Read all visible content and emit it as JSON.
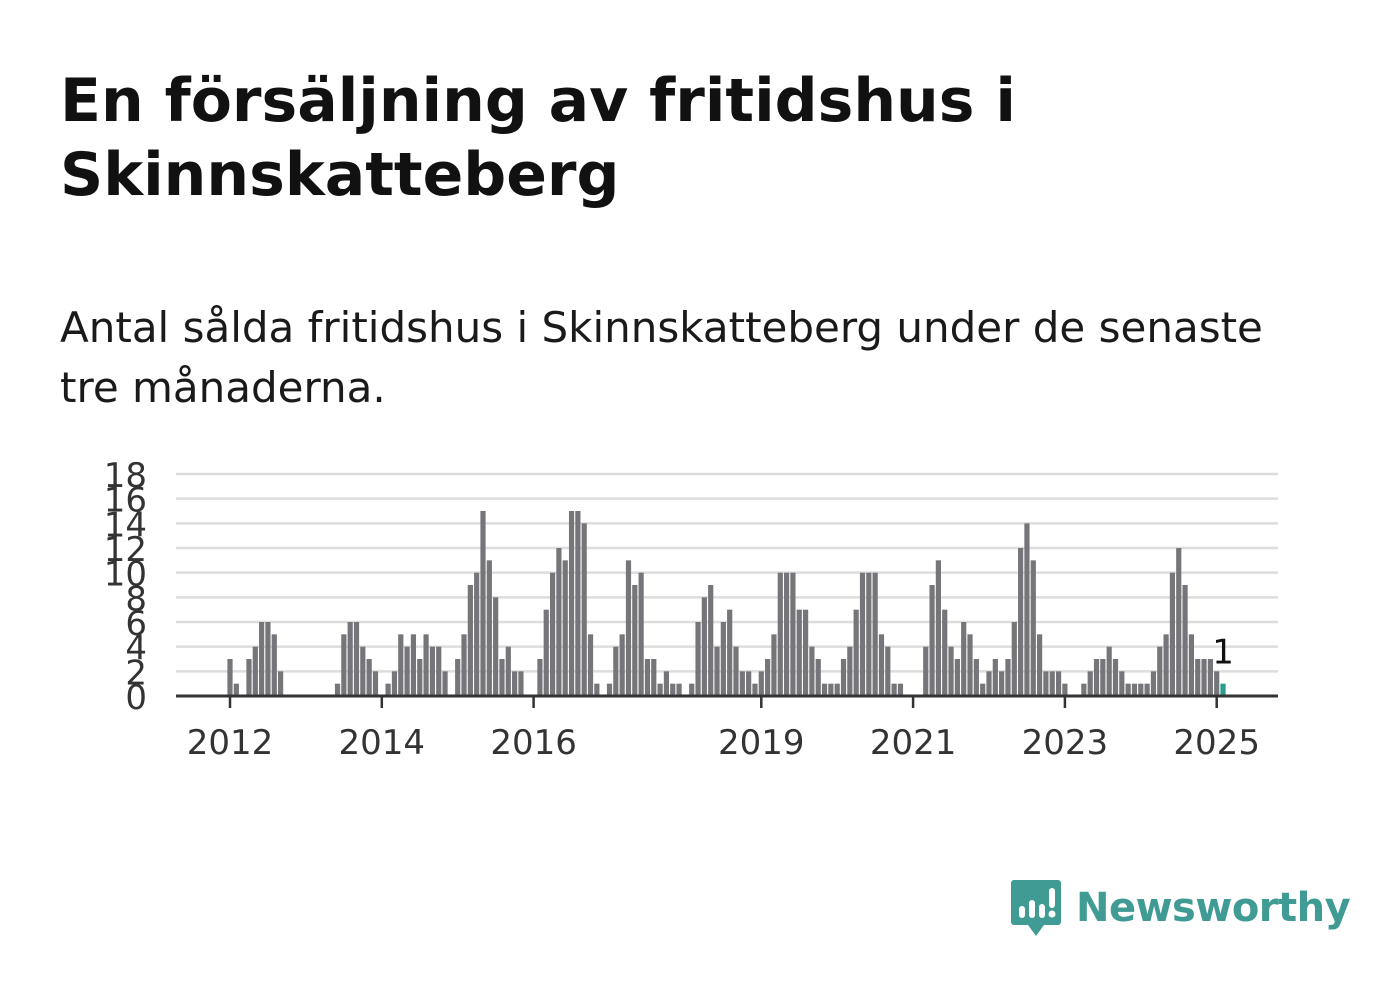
{
  "title": "En försäljning av fritidshus i Skinnskatteberg",
  "subtitle": "Antal sålda fritidshus i Skinnskatteberg under de senaste tre månaderna.",
  "brand": {
    "name": "Newsworthy",
    "color": "#3f9b93",
    "icon": "newsworthy-logo-icon"
  },
  "colors": {
    "bar": "#76767a",
    "highlight": "#2a9d8f",
    "grid": "#dddddd",
    "axis": "#333333"
  },
  "chart_data": {
    "type": "bar",
    "title": "",
    "xlabel": "",
    "ylabel": "",
    "ylim": [
      0,
      18
    ],
    "yticks": [
      0,
      2,
      4,
      6,
      8,
      10,
      12,
      14,
      16,
      18
    ],
    "grid": true,
    "x_start": "2011-01",
    "x_end": "2025-05",
    "x_tick_labels": [
      {
        "label": "2012",
        "date": "2012-01"
      },
      {
        "label": "2014",
        "date": "2014-01"
      },
      {
        "label": "2016",
        "date": "2016-01"
      },
      {
        "label": "2019",
        "date": "2019-01"
      },
      {
        "label": "2021",
        "date": "2021-01"
      },
      {
        "label": "2023",
        "date": "2023-01"
      },
      {
        "label": "2025",
        "date": "2025-01"
      }
    ],
    "series": [
      {
        "name": "",
        "values": [
          {
            "date": "2012-01",
            "value": 3
          },
          {
            "date": "2012-02",
            "value": 1
          },
          {
            "date": "2012-04",
            "value": 3
          },
          {
            "date": "2012-05",
            "value": 4
          },
          {
            "date": "2012-06",
            "value": 6
          },
          {
            "date": "2012-07",
            "value": 6
          },
          {
            "date": "2012-08",
            "value": 5
          },
          {
            "date": "2012-09",
            "value": 2
          },
          {
            "date": "2013-06",
            "value": 1
          },
          {
            "date": "2013-07",
            "value": 5
          },
          {
            "date": "2013-08",
            "value": 6
          },
          {
            "date": "2013-09",
            "value": 6
          },
          {
            "date": "2013-10",
            "value": 4
          },
          {
            "date": "2013-11",
            "value": 3
          },
          {
            "date": "2013-12",
            "value": 2
          },
          {
            "date": "2014-02",
            "value": 1
          },
          {
            "date": "2014-03",
            "value": 2
          },
          {
            "date": "2014-04",
            "value": 5
          },
          {
            "date": "2014-05",
            "value": 4
          },
          {
            "date": "2014-06",
            "value": 5
          },
          {
            "date": "2014-07",
            "value": 3
          },
          {
            "date": "2014-08",
            "value": 5
          },
          {
            "date": "2014-09",
            "value": 4
          },
          {
            "date": "2014-10",
            "value": 4
          },
          {
            "date": "2014-11",
            "value": 2
          },
          {
            "date": "2015-01",
            "value": 3
          },
          {
            "date": "2015-02",
            "value": 5
          },
          {
            "date": "2015-03",
            "value": 9
          },
          {
            "date": "2015-04",
            "value": 10
          },
          {
            "date": "2015-05",
            "value": 15
          },
          {
            "date": "2015-06",
            "value": 11
          },
          {
            "date": "2015-07",
            "value": 8
          },
          {
            "date": "2015-08",
            "value": 3
          },
          {
            "date": "2015-09",
            "value": 4
          },
          {
            "date": "2015-10",
            "value": 2
          },
          {
            "date": "2015-11",
            "value": 2
          },
          {
            "date": "2016-02",
            "value": 3
          },
          {
            "date": "2016-03",
            "value": 7
          },
          {
            "date": "2016-04",
            "value": 10
          },
          {
            "date": "2016-05",
            "value": 12
          },
          {
            "date": "2016-06",
            "value": 11
          },
          {
            "date": "2016-07",
            "value": 15
          },
          {
            "date": "2016-08",
            "value": 15
          },
          {
            "date": "2016-09",
            "value": 14
          },
          {
            "date": "2016-10",
            "value": 5
          },
          {
            "date": "2016-11",
            "value": 1
          },
          {
            "date": "2017-01",
            "value": 1
          },
          {
            "date": "2017-02",
            "value": 4
          },
          {
            "date": "2017-03",
            "value": 5
          },
          {
            "date": "2017-04",
            "value": 11
          },
          {
            "date": "2017-05",
            "value": 9
          },
          {
            "date": "2017-06",
            "value": 10
          },
          {
            "date": "2017-07",
            "value": 3
          },
          {
            "date": "2017-08",
            "value": 3
          },
          {
            "date": "2017-09",
            "value": 1
          },
          {
            "date": "2017-10",
            "value": 2
          },
          {
            "date": "2017-11",
            "value": 1
          },
          {
            "date": "2017-12",
            "value": 1
          },
          {
            "date": "2018-02",
            "value": 1
          },
          {
            "date": "2018-03",
            "value": 6
          },
          {
            "date": "2018-04",
            "value": 8
          },
          {
            "date": "2018-05",
            "value": 9
          },
          {
            "date": "2018-06",
            "value": 4
          },
          {
            "date": "2018-07",
            "value": 6
          },
          {
            "date": "2018-08",
            "value": 7
          },
          {
            "date": "2018-09",
            "value": 4
          },
          {
            "date": "2018-10",
            "value": 2
          },
          {
            "date": "2018-11",
            "value": 2
          },
          {
            "date": "2018-12",
            "value": 1
          },
          {
            "date": "2019-01",
            "value": 2
          },
          {
            "date": "2019-02",
            "value": 3
          },
          {
            "date": "2019-03",
            "value": 5
          },
          {
            "date": "2019-04",
            "value": 10
          },
          {
            "date": "2019-05",
            "value": 10
          },
          {
            "date": "2019-06",
            "value": 10
          },
          {
            "date": "2019-07",
            "value": 7
          },
          {
            "date": "2019-08",
            "value": 7
          },
          {
            "date": "2019-09",
            "value": 4
          },
          {
            "date": "2019-10",
            "value": 3
          },
          {
            "date": "2019-11",
            "value": 1
          },
          {
            "date": "2019-12",
            "value": 1
          },
          {
            "date": "2020-01",
            "value": 1
          },
          {
            "date": "2020-02",
            "value": 3
          },
          {
            "date": "2020-03",
            "value": 4
          },
          {
            "date": "2020-04",
            "value": 7
          },
          {
            "date": "2020-05",
            "value": 10
          },
          {
            "date": "2020-06",
            "value": 10
          },
          {
            "date": "2020-07",
            "value": 10
          },
          {
            "date": "2020-08",
            "value": 5
          },
          {
            "date": "2020-09",
            "value": 4
          },
          {
            "date": "2020-10",
            "value": 1
          },
          {
            "date": "2020-11",
            "value": 1
          },
          {
            "date": "2021-03",
            "value": 4
          },
          {
            "date": "2021-04",
            "value": 9
          },
          {
            "date": "2021-05",
            "value": 11
          },
          {
            "date": "2021-06",
            "value": 7
          },
          {
            "date": "2021-07",
            "value": 4
          },
          {
            "date": "2021-08",
            "value": 3
          },
          {
            "date": "2021-09",
            "value": 6
          },
          {
            "date": "2021-10",
            "value": 5
          },
          {
            "date": "2021-11",
            "value": 3
          },
          {
            "date": "2021-12",
            "value": 1
          },
          {
            "date": "2022-01",
            "value": 2
          },
          {
            "date": "2022-02",
            "value": 3
          },
          {
            "date": "2022-03",
            "value": 2
          },
          {
            "date": "2022-04",
            "value": 3
          },
          {
            "date": "2022-05",
            "value": 6
          },
          {
            "date": "2022-06",
            "value": 12
          },
          {
            "date": "2022-07",
            "value": 14
          },
          {
            "date": "2022-08",
            "value": 11
          },
          {
            "date": "2022-09",
            "value": 5
          },
          {
            "date": "2022-10",
            "value": 2
          },
          {
            "date": "2022-11",
            "value": 2
          },
          {
            "date": "2022-12",
            "value": 2
          },
          {
            "date": "2023-01",
            "value": 1
          },
          {
            "date": "2023-04",
            "value": 1
          },
          {
            "date": "2023-05",
            "value": 2
          },
          {
            "date": "2023-06",
            "value": 3
          },
          {
            "date": "2023-07",
            "value": 3
          },
          {
            "date": "2023-08",
            "value": 4
          },
          {
            "date": "2023-09",
            "value": 3
          },
          {
            "date": "2023-10",
            "value": 2
          },
          {
            "date": "2023-11",
            "value": 1
          },
          {
            "date": "2023-12",
            "value": 1
          },
          {
            "date": "2024-01",
            "value": 1
          },
          {
            "date": "2024-02",
            "value": 1
          },
          {
            "date": "2024-03",
            "value": 2
          },
          {
            "date": "2024-04",
            "value": 4
          },
          {
            "date": "2024-05",
            "value": 5
          },
          {
            "date": "2024-06",
            "value": 10
          },
          {
            "date": "2024-07",
            "value": 12
          },
          {
            "date": "2024-08",
            "value": 9
          },
          {
            "date": "2024-09",
            "value": 5
          },
          {
            "date": "2024-10",
            "value": 3
          },
          {
            "date": "2024-11",
            "value": 3
          },
          {
            "date": "2024-12",
            "value": 3
          },
          {
            "date": "2025-01",
            "value": 2
          },
          {
            "date": "2025-02",
            "value": 1
          }
        ]
      }
    ],
    "highlight": {
      "date": "2025-02",
      "value": 1,
      "label": "1"
    }
  }
}
